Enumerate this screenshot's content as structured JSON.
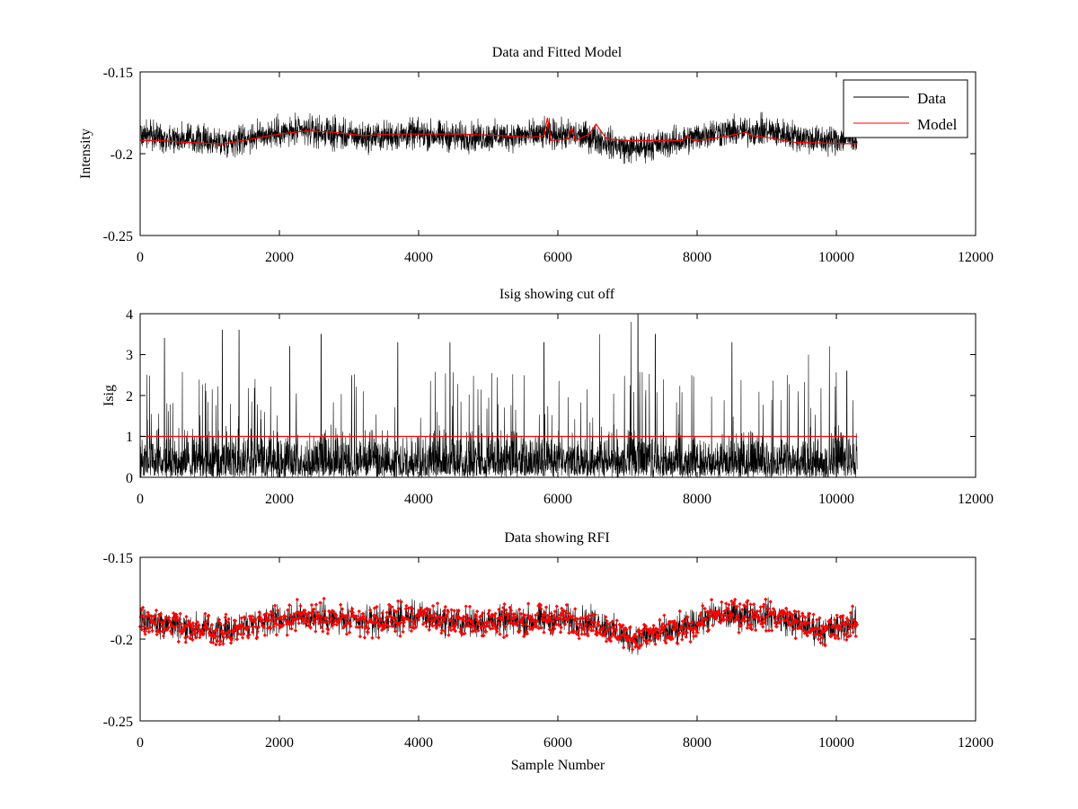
{
  "chart_data": [
    {
      "type": "line",
      "title": "Data and Fitted Model",
      "xlabel": "",
      "ylabel": "Intensity",
      "xlim": [
        0,
        12000
      ],
      "ylim": [
        -0.25,
        -0.15
      ],
      "y_reversed": true,
      "xticks": [
        0,
        2000,
        4000,
        6000,
        8000,
        10000,
        12000
      ],
      "yticks": [
        -0.15,
        -0.2,
        -0.25
      ],
      "xtick_labels": [
        "0",
        "2000",
        "4000",
        "6000",
        "8000",
        "10000",
        "12000"
      ],
      "ytick_labels": [
        "-0.15",
        "-0.2",
        "-0.25"
      ],
      "grid": false,
      "legend_position": "top-right",
      "data_x_range": [
        0,
        10300
      ],
      "series": [
        {
          "name": "Data",
          "color": "#000000",
          "style": "noisy-line",
          "baseline": [
            [
              0,
              -0.188
            ],
            [
              400,
              -0.19
            ],
            [
              1200,
              -0.193
            ],
            [
              1800,
              -0.188
            ],
            [
              2400,
              -0.186
            ],
            [
              3200,
              -0.19
            ],
            [
              4000,
              -0.188
            ],
            [
              4600,
              -0.19
            ],
            [
              5400,
              -0.189
            ],
            [
              6000,
              -0.188
            ],
            [
              6500,
              -0.19
            ],
            [
              7000,
              -0.197
            ],
            [
              7800,
              -0.192
            ],
            [
              8200,
              -0.187
            ],
            [
              9000,
              -0.186
            ],
            [
              9800,
              -0.192
            ],
            [
              10300,
              -0.19
            ]
          ],
          "spread": 0.022
        },
        {
          "name": "Model",
          "color": "#ff0000",
          "style": "line",
          "points": [
            [
              0,
              -0.192
            ],
            [
              300,
              -0.192
            ],
            [
              600,
              -0.193
            ],
            [
              1200,
              -0.194
            ],
            [
              1600,
              -0.191
            ],
            [
              2000,
              -0.188
            ],
            [
              2400,
              -0.186
            ],
            [
              2800,
              -0.187
            ],
            [
              3200,
              -0.189
            ],
            [
              3600,
              -0.188
            ],
            [
              4000,
              -0.188
            ],
            [
              4600,
              -0.188
            ],
            [
              5200,
              -0.189
            ],
            [
              5600,
              -0.19
            ],
            [
              5800,
              -0.189
            ],
            [
              5850,
              -0.178
            ],
            [
              5900,
              -0.192
            ],
            [
              6150,
              -0.191
            ],
            [
              6200,
              -0.184
            ],
            [
              6250,
              -0.192
            ],
            [
              6450,
              -0.188
            ],
            [
              6550,
              -0.182
            ],
            [
              6700,
              -0.191
            ],
            [
              7000,
              -0.192
            ],
            [
              7500,
              -0.192
            ],
            [
              7800,
              -0.192
            ],
            [
              7850,
              -0.189
            ],
            [
              7950,
              -0.192
            ],
            [
              8200,
              -0.191
            ],
            [
              8700,
              -0.187
            ],
            [
              8800,
              -0.189
            ],
            [
              9000,
              -0.19
            ],
            [
              9400,
              -0.193
            ],
            [
              10300,
              -0.194
            ]
          ]
        }
      ]
    },
    {
      "type": "line",
      "title": "Isig showing cut off",
      "xlabel": "",
      "ylabel": "Isig",
      "xlim": [
        0,
        12000
      ],
      "ylim": [
        0,
        4
      ],
      "y_reversed": false,
      "xticks": [
        0,
        2000,
        4000,
        6000,
        8000,
        10000,
        12000
      ],
      "yticks": [
        0,
        1,
        2,
        3,
        4
      ],
      "xtick_labels": [
        "0",
        "2000",
        "4000",
        "6000",
        "8000",
        "10000",
        "12000"
      ],
      "ytick_labels": [
        "0",
        "1",
        "2",
        "3",
        "4"
      ],
      "grid": false,
      "data_x_range": [
        0,
        10300
      ],
      "series": [
        {
          "color": "#000000",
          "style": "noisy-line",
          "typical_max": 1.9,
          "peaks": [
            [
              350,
              3.4
            ],
            [
              1180,
              3.6
            ],
            [
              1420,
              3.6
            ],
            [
              2150,
              3.2
            ],
            [
              2600,
              3.5
            ],
            [
              3700,
              3.3
            ],
            [
              4450,
              3.3
            ],
            [
              5800,
              3.3
            ],
            [
              6600,
              3.5
            ],
            [
              7050,
              3.8
            ],
            [
              7150,
              4.0
            ],
            [
              7400,
              3.5
            ],
            [
              8500,
              3.3
            ],
            [
              9600,
              3.0
            ],
            [
              9900,
              3.2
            ],
            [
              10150,
              2.6
            ]
          ]
        },
        {
          "color": "#ff0000",
          "style": "line",
          "points": [
            [
              0,
              1.0
            ],
            [
              10300,
              1.0
            ]
          ]
        }
      ]
    },
    {
      "type": "line",
      "title": "Data showing RFI",
      "xlabel": "Sample Number",
      "ylabel": "",
      "xlim": [
        0,
        12000
      ],
      "ylim": [
        -0.25,
        -0.15
      ],
      "y_reversed": true,
      "xticks": [
        0,
        2000,
        4000,
        6000,
        8000,
        10000,
        12000
      ],
      "yticks": [
        -0.15,
        -0.2,
        -0.25
      ],
      "xtick_labels": [
        "0",
        "2000",
        "4000",
        "6000",
        "8000",
        "10000",
        "12000"
      ],
      "ytick_labels": [
        "-0.15",
        "-0.2",
        "-0.25"
      ],
      "grid": false,
      "data_x_range": [
        0,
        10300
      ],
      "series": [
        {
          "color": "#000000",
          "style": "noisy-line-with-markers",
          "marker_color": "#ff0000",
          "baseline": [
            [
              0,
              -0.188
            ],
            [
              400,
              -0.191
            ],
            [
              1200,
              -0.196
            ],
            [
              1800,
              -0.188
            ],
            [
              2400,
              -0.186
            ],
            [
              3200,
              -0.19
            ],
            [
              4000,
              -0.186
            ],
            [
              4600,
              -0.19
            ],
            [
              5400,
              -0.189
            ],
            [
              6000,
              -0.188
            ],
            [
              6600,
              -0.19
            ],
            [
              7000,
              -0.2
            ],
            [
              7800,
              -0.194
            ],
            [
              8200,
              -0.186
            ],
            [
              9000,
              -0.185
            ],
            [
              9800,
              -0.195
            ],
            [
              10300,
              -0.19
            ]
          ],
          "spread": 0.022
        }
      ]
    }
  ]
}
